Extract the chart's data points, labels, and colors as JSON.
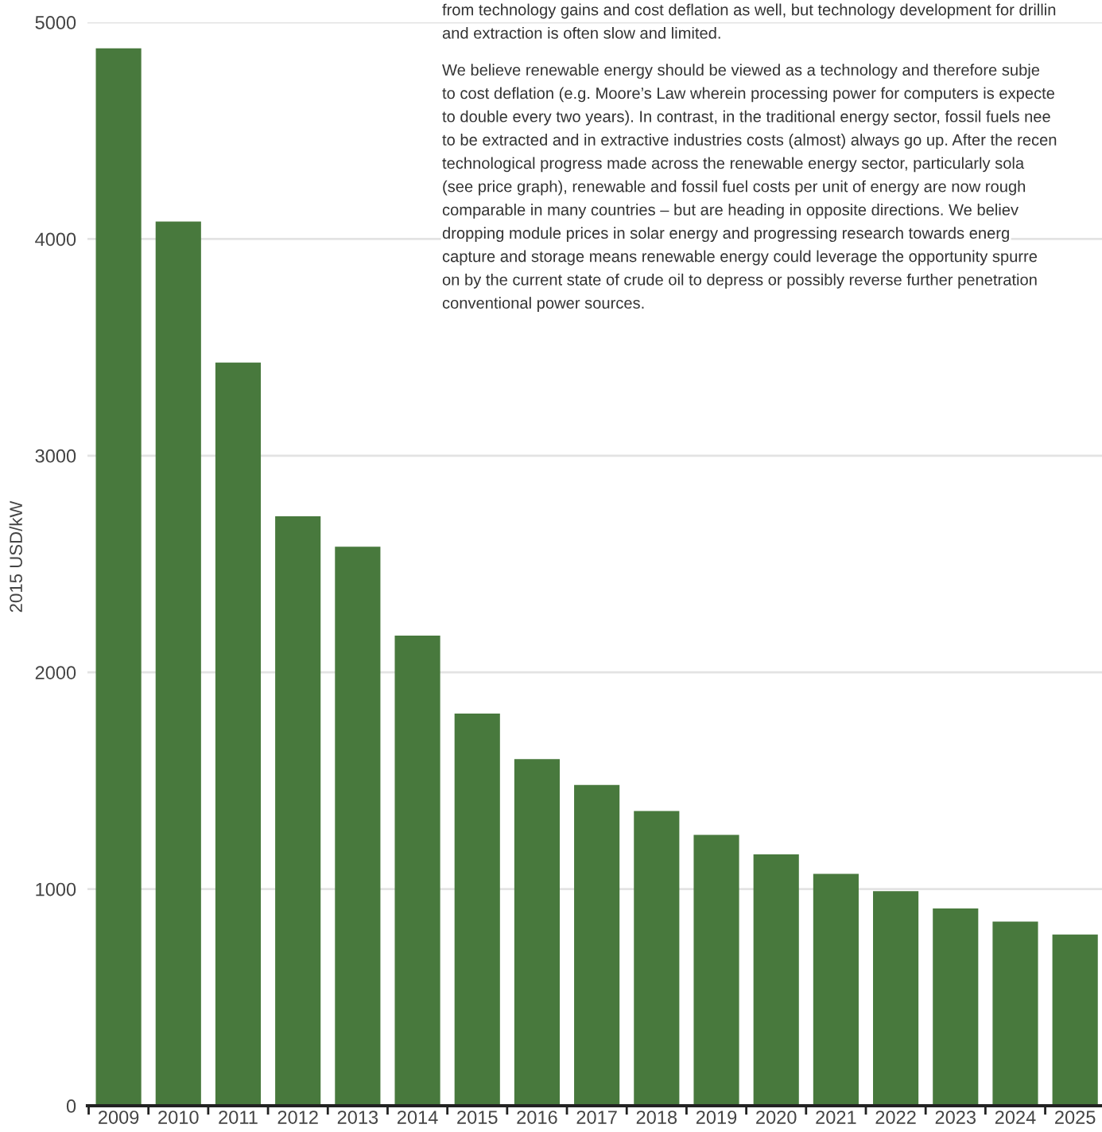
{
  "chart_data": {
    "type": "bar",
    "ylabel": "2015 USD/kW",
    "categories": [
      "2009",
      "2010",
      "2011",
      "2012",
      "2013",
      "2014",
      "2015",
      "2016",
      "2017",
      "2018",
      "2019",
      "2020",
      "2021",
      "2022",
      "2023",
      "2024",
      "2025"
    ],
    "values": [
      4880,
      4080,
      3430,
      2720,
      2580,
      2170,
      1810,
      1600,
      1480,
      1360,
      1250,
      1160,
      1070,
      990,
      910,
      850,
      790
    ],
    "color": "#48793d",
    "ylim": [
      0,
      5000
    ],
    "yticks": [
      0,
      1000,
      2000,
      3000,
      4000,
      5000
    ],
    "grid": "y",
    "annotations": [
      "from technology gains and cost deflation as well, but technology development for drillin",
      "and extraction is often slow and limited.",
      "We believe renewable energy should be viewed as a technology and therefore subje",
      "to cost deflation (e.g. Moore’s Law wherein processing power for computers is expecte",
      "to double every two years). In contrast, in the traditional energy sector, fossil fuels nee",
      "to be extracted and in extractive industries costs (almost) always go up. After the recen",
      "technological progress made across the renewable energy sector, particularly sola",
      "(see price graph), renewable and fossil fuel costs per unit of energy are now rough",
      "comparable in many countries – but are heading in opposite directions. We believ",
      "dropping module prices in solar energy and progressing research towards energ",
      "capture and storage means renewable energy could leverage the opportunity spurre",
      "on by the current state of crude oil to depress or possibly reverse further penetration",
      "conventional power sources."
    ]
  }
}
